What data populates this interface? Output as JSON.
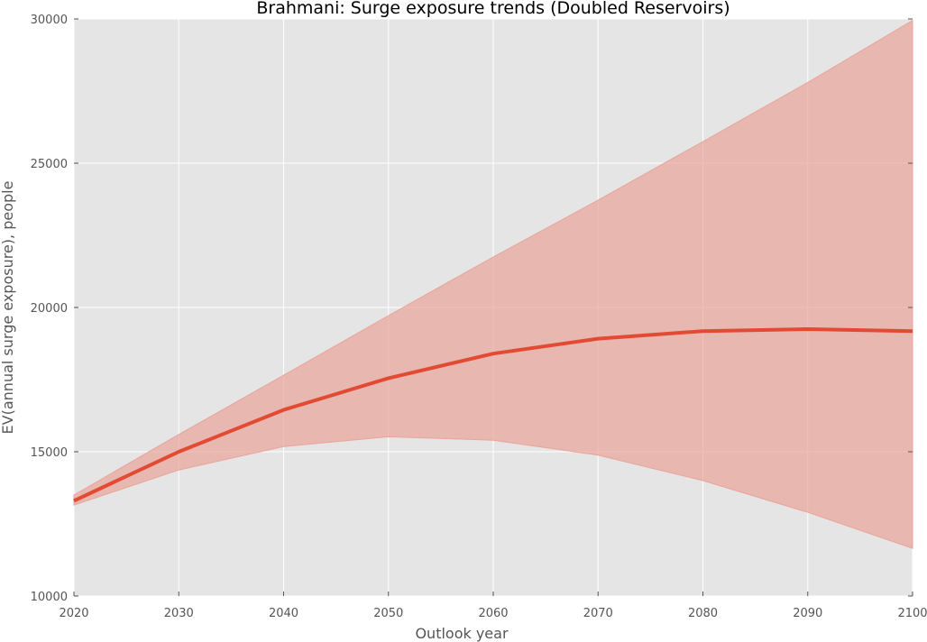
{
  "chart_data": {
    "type": "line",
    "title": "Brahmani: Surge exposure trends (Doubled Reservoirs)",
    "xlabel": "Outlook year",
    "ylabel": "EV(annual surge exposure), people",
    "xlim": [
      2020,
      2100
    ],
    "ylim": [
      10000,
      30000
    ],
    "x_ticks": [
      2020,
      2030,
      2040,
      2050,
      2060,
      2070,
      2080,
      2090,
      2100
    ],
    "y_ticks": [
      10000,
      15000,
      20000,
      25000,
      30000
    ],
    "x": [
      2020,
      2030,
      2040,
      2050,
      2060,
      2070,
      2080,
      2090,
      2100
    ],
    "series": [
      {
        "values": [
          13300,
          15000,
          16450,
          17550,
          18400,
          18920,
          19180,
          19250,
          19180
        ],
        "band_lower": [
          13150,
          14370,
          15180,
          15520,
          15400,
          14880,
          14000,
          12900,
          11650
        ],
        "band_upper": [
          13500,
          15600,
          17650,
          19720,
          21750,
          23720,
          25750,
          27800,
          29950
        ]
      }
    ],
    "grid": true,
    "legend": "none"
  },
  "colors": {
    "plot_background": "#e5e5e5",
    "grid": "#ffffff",
    "line": "#e24a33",
    "band": "#e9a49a"
  }
}
